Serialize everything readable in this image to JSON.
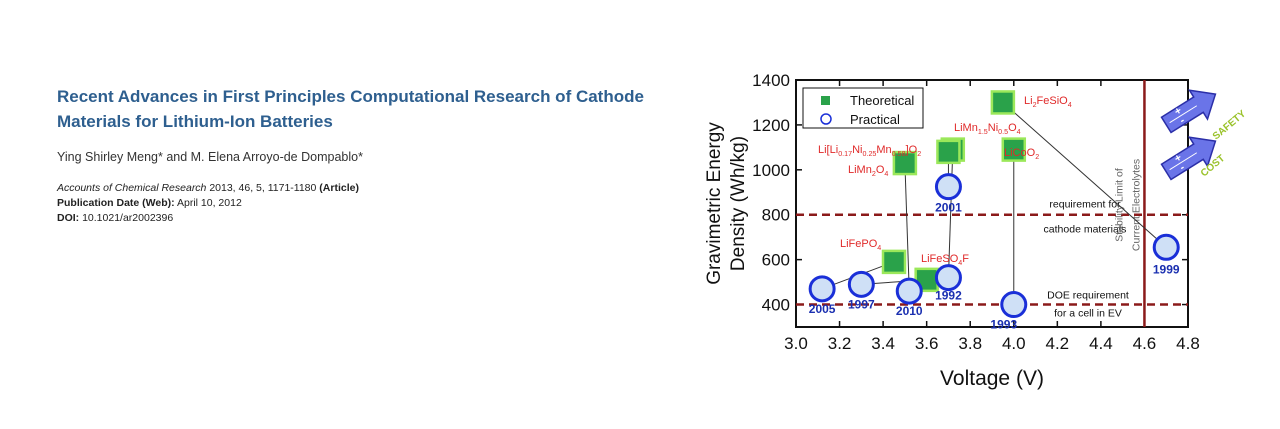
{
  "article": {
    "title": "Recent Advances in First Principles Computational Research of Cathode Materials for Lithium-Ion Batteries",
    "authors": "Ying Shirley Meng* and M. Elena Arroyo-de Dompablo*",
    "journal": "Accounts of Chemical Research",
    "citation": " 2013, 46, 5, 1171-1180 ",
    "article_type": "(Article)",
    "pub_date_label": "Publication Date (Web):",
    "pub_date": " April 10, 2012",
    "doi_label": "DOI:",
    "doi": " 10.1021/ar2002396"
  },
  "chart_data": {
    "type": "scatter",
    "xlabel": "Voltage (V)",
    "ylabel": "Gravimetric Energy Density (Wh/kg)",
    "xlim": [
      3.0,
      4.8
    ],
    "ylim": [
      300,
      1400
    ],
    "x_ticks": [
      "3.0",
      "3.2",
      "3.4",
      "3.6",
      "3.8",
      "4.0",
      "4.2",
      "4.4",
      "4.6",
      "4.8"
    ],
    "y_ticks": [
      "400",
      "600",
      "800",
      "1000",
      "1200",
      "1400"
    ],
    "legend": [
      "Theoretical",
      "Practical"
    ],
    "series": [
      {
        "name": "Theoretical",
        "points": [
          {
            "label": "Li2FeSiO4",
            "x": 3.95,
            "y": 1300
          },
          {
            "label": "LiMn1.5Ni0.5O4",
            "x": 3.72,
            "y": 1090
          },
          {
            "label": "Li[Li0.17Ni0.25Mn0.58]O2",
            "x": 3.7,
            "y": 1080
          },
          {
            "label": "LiCoO2",
            "x": 4.0,
            "y": 1090
          },
          {
            "label": "LiMn2O4",
            "x": 3.5,
            "y": 1030
          },
          {
            "label": "LiFePO4",
            "x": 3.45,
            "y": 590
          },
          {
            "label": "LiFeSO4F",
            "x": 3.6,
            "y": 510
          }
        ]
      },
      {
        "name": "Practical",
        "points": [
          {
            "label": "2005",
            "x": 3.12,
            "y": 470
          },
          {
            "label": "1997",
            "x": 3.3,
            "y": 490
          },
          {
            "label": "2010",
            "x": 3.52,
            "y": 460
          },
          {
            "label": "1992",
            "x": 3.7,
            "y": 520
          },
          {
            "label": "1993",
            "x": 4.0,
            "y": 400
          },
          {
            "label": "2001",
            "x": 3.7,
            "y": 925
          },
          {
            "label": "1999",
            "x": 4.7,
            "y": 655
          }
        ]
      }
    ],
    "reference_lines": [
      {
        "y": 800,
        "label": [
          "requirement for",
          "cathode materials"
        ]
      },
      {
        "y": 400,
        "label": [
          "DOE requirement",
          "for a cell in EV"
        ]
      }
    ],
    "vertical_line": {
      "x": 4.6,
      "label": [
        "Stability Limit of",
        "Current Electrolytes"
      ]
    },
    "arrows": [
      "SAFETY",
      "COST"
    ],
    "arrow_signs": [
      "+",
      "-"
    ],
    "formula_labels": [
      {
        "base": [
          "Li",
          "2",
          "FeSiO",
          "4",
          ""
        ]
      },
      {
        "base": [
          "LiMn",
          "1.5",
          "Ni",
          "0.5",
          "O",
          "4",
          ""
        ]
      },
      {
        "base": [
          "Li[Li",
          "0.17",
          "Ni",
          "0.25",
          "Mn",
          "0.58",
          "]O",
          "2",
          ""
        ]
      },
      {
        "base": [
          "LiCoO",
          "2",
          ""
        ]
      },
      {
        "base": [
          "LiMn",
          "2",
          "O",
          "4",
          ""
        ]
      },
      {
        "base": [
          "LiFePO",
          "4",
          ""
        ]
      },
      {
        "base": [
          "LiFeSO",
          "4",
          "F"
        ]
      }
    ]
  },
  "colors": {
    "title": "#2e5f8f",
    "theoretical_fill": "#2aa24a",
    "theoretical_border": "#9be85a",
    "practical_stroke": "#1a2fd8",
    "practical_fill": "#cfe0f6",
    "label_red": "#e02a2a",
    "year_blue": "#1a2fb0",
    "ref_line": "#8b1a1a",
    "arrow_fill": "#6a74e8",
    "arrow_text": "#9ac22a"
  }
}
